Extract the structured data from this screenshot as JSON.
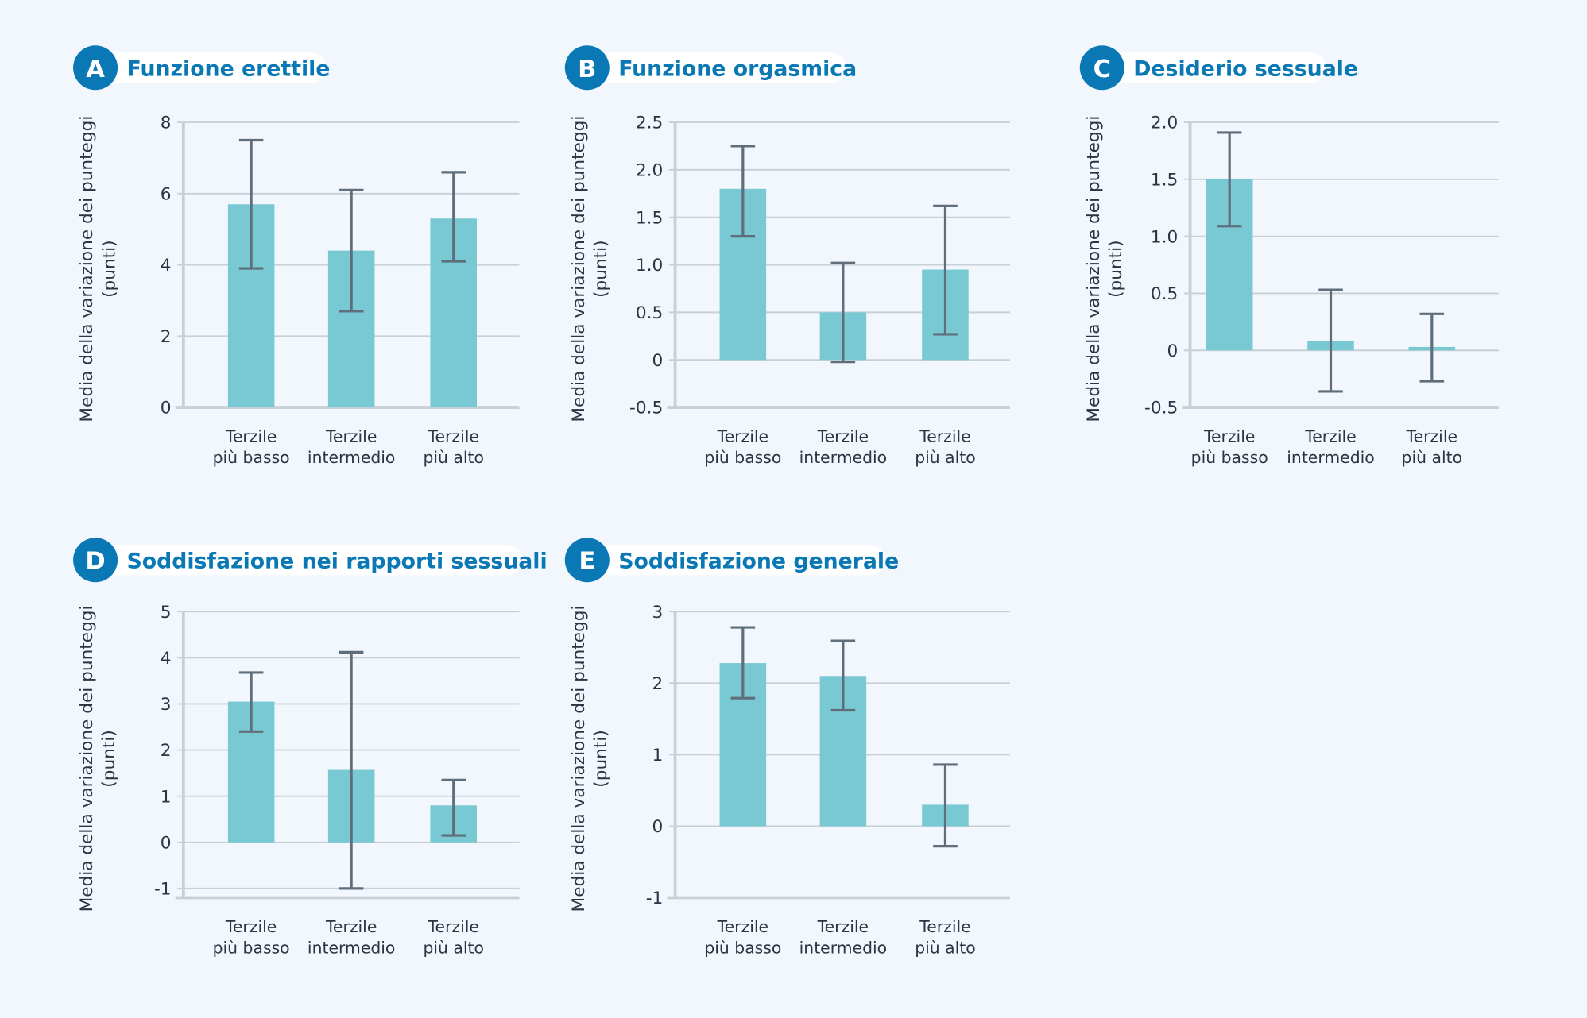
{
  "colors": {
    "background": "#f2f7fd",
    "bar": "#79c9d4",
    "error_bar": "#5f6e7a",
    "grid": "#c8d0d6",
    "title": "#0a78b4",
    "badge": "#0a78b4"
  },
  "chart_data": [
    {
      "type": "bar",
      "badge": "A",
      "title": "Funzione erettile",
      "ylabel": [
        "Media della variazione dei punteggi",
        "(punti)"
      ],
      "categories": [
        [
          "Terzile",
          "più basso"
        ],
        [
          "Terzile",
          "intermedio"
        ],
        [
          "Terzile",
          "più alto"
        ]
      ],
      "values": [
        5.7,
        4.4,
        5.3
      ],
      "error_low": [
        3.9,
        2.7,
        4.1
      ],
      "error_high": [
        7.5,
        6.1,
        6.6
      ],
      "ylim": [
        0,
        8
      ],
      "yticks": [
        "0",
        "2",
        "4",
        "6",
        "8"
      ],
      "ytick_values": [
        0,
        2,
        4,
        6,
        8
      ],
      "grid": true
    },
    {
      "type": "bar",
      "badge": "B",
      "title": "Funzione orgasmica",
      "ylabel": [
        "Media della variazione dei punteggi",
        "(punti)"
      ],
      "categories": [
        [
          "Terzile",
          "più basso"
        ],
        [
          "Terzile",
          "intermedio"
        ],
        [
          "Terzile",
          "più alto"
        ]
      ],
      "values": [
        1.8,
        0.5,
        0.95
      ],
      "error_low": [
        1.3,
        -0.02,
        0.27
      ],
      "error_high": [
        2.25,
        1.02,
        1.62
      ],
      "ylim": [
        -0.5,
        2.5
      ],
      "yticks": [
        "-0.5",
        "0",
        "0.5",
        "1.0",
        "1.5",
        "2.0",
        "2.5"
      ],
      "ytick_values": [
        -0.5,
        0,
        0.5,
        1,
        1.5,
        2,
        2.5
      ],
      "grid": true
    },
    {
      "type": "bar",
      "badge": "C",
      "title": "Desiderio sessuale",
      "ylabel": [
        "Media della variazione dei punteggi",
        "(punti)"
      ],
      "categories": [
        [
          "Terzile",
          "più basso"
        ],
        [
          "Terzile",
          "intermedio"
        ],
        [
          "Terzile",
          "più alto"
        ]
      ],
      "values": [
        1.5,
        0.08,
        0.03
      ],
      "error_low": [
        1.09,
        -0.36,
        -0.27
      ],
      "error_high": [
        1.91,
        0.53,
        0.32
      ],
      "ylim": [
        -0.5,
        2.0
      ],
      "yticks": [
        "-0.5",
        "0",
        "0.5",
        "1.0",
        "1.5",
        "2.0"
      ],
      "ytick_values": [
        -0.5,
        0,
        0.5,
        1,
        1.5,
        2
      ],
      "grid": true
    },
    {
      "type": "bar",
      "badge": "D",
      "title": "Soddisfazione nei rapporti sessuali",
      "ylabel": [
        "Media della variazione dei punteggi",
        "(punti)"
      ],
      "categories": [
        [
          "Terzile",
          "più basso"
        ],
        [
          "Terzile",
          "intermedio"
        ],
        [
          "Terzile",
          "più alto"
        ]
      ],
      "values": [
        3.05,
        1.57,
        0.8
      ],
      "error_low": [
        2.4,
        -1.0,
        0.15
      ],
      "error_high": [
        3.68,
        4.12,
        1.35
      ],
      "ylim": [
        -1.2,
        5
      ],
      "yticks": [
        "-1",
        "0",
        "1",
        "2",
        "3",
        "4",
        "5"
      ],
      "ytick_values": [
        -1,
        0,
        1,
        2,
        3,
        4,
        5
      ],
      "grid": true
    },
    {
      "type": "bar",
      "badge": "E",
      "title": "Soddisfazione generale",
      "ylabel": [
        "Media della variazione dei punteggi",
        "(punti)"
      ],
      "categories": [
        [
          "Terzile",
          "più basso"
        ],
        [
          "Terzile",
          "intermedio"
        ],
        [
          "Terzile",
          "più alto"
        ]
      ],
      "values": [
        2.28,
        2.1,
        0.3
      ],
      "error_low": [
        1.79,
        1.62,
        -0.28
      ],
      "error_high": [
        2.78,
        2.59,
        0.86
      ],
      "ylim": [
        -1,
        3
      ],
      "yticks": [
        "-1",
        "0",
        "1",
        "2",
        "3"
      ],
      "ytick_values": [
        -1,
        0,
        1,
        2,
        3
      ],
      "grid": true
    }
  ]
}
